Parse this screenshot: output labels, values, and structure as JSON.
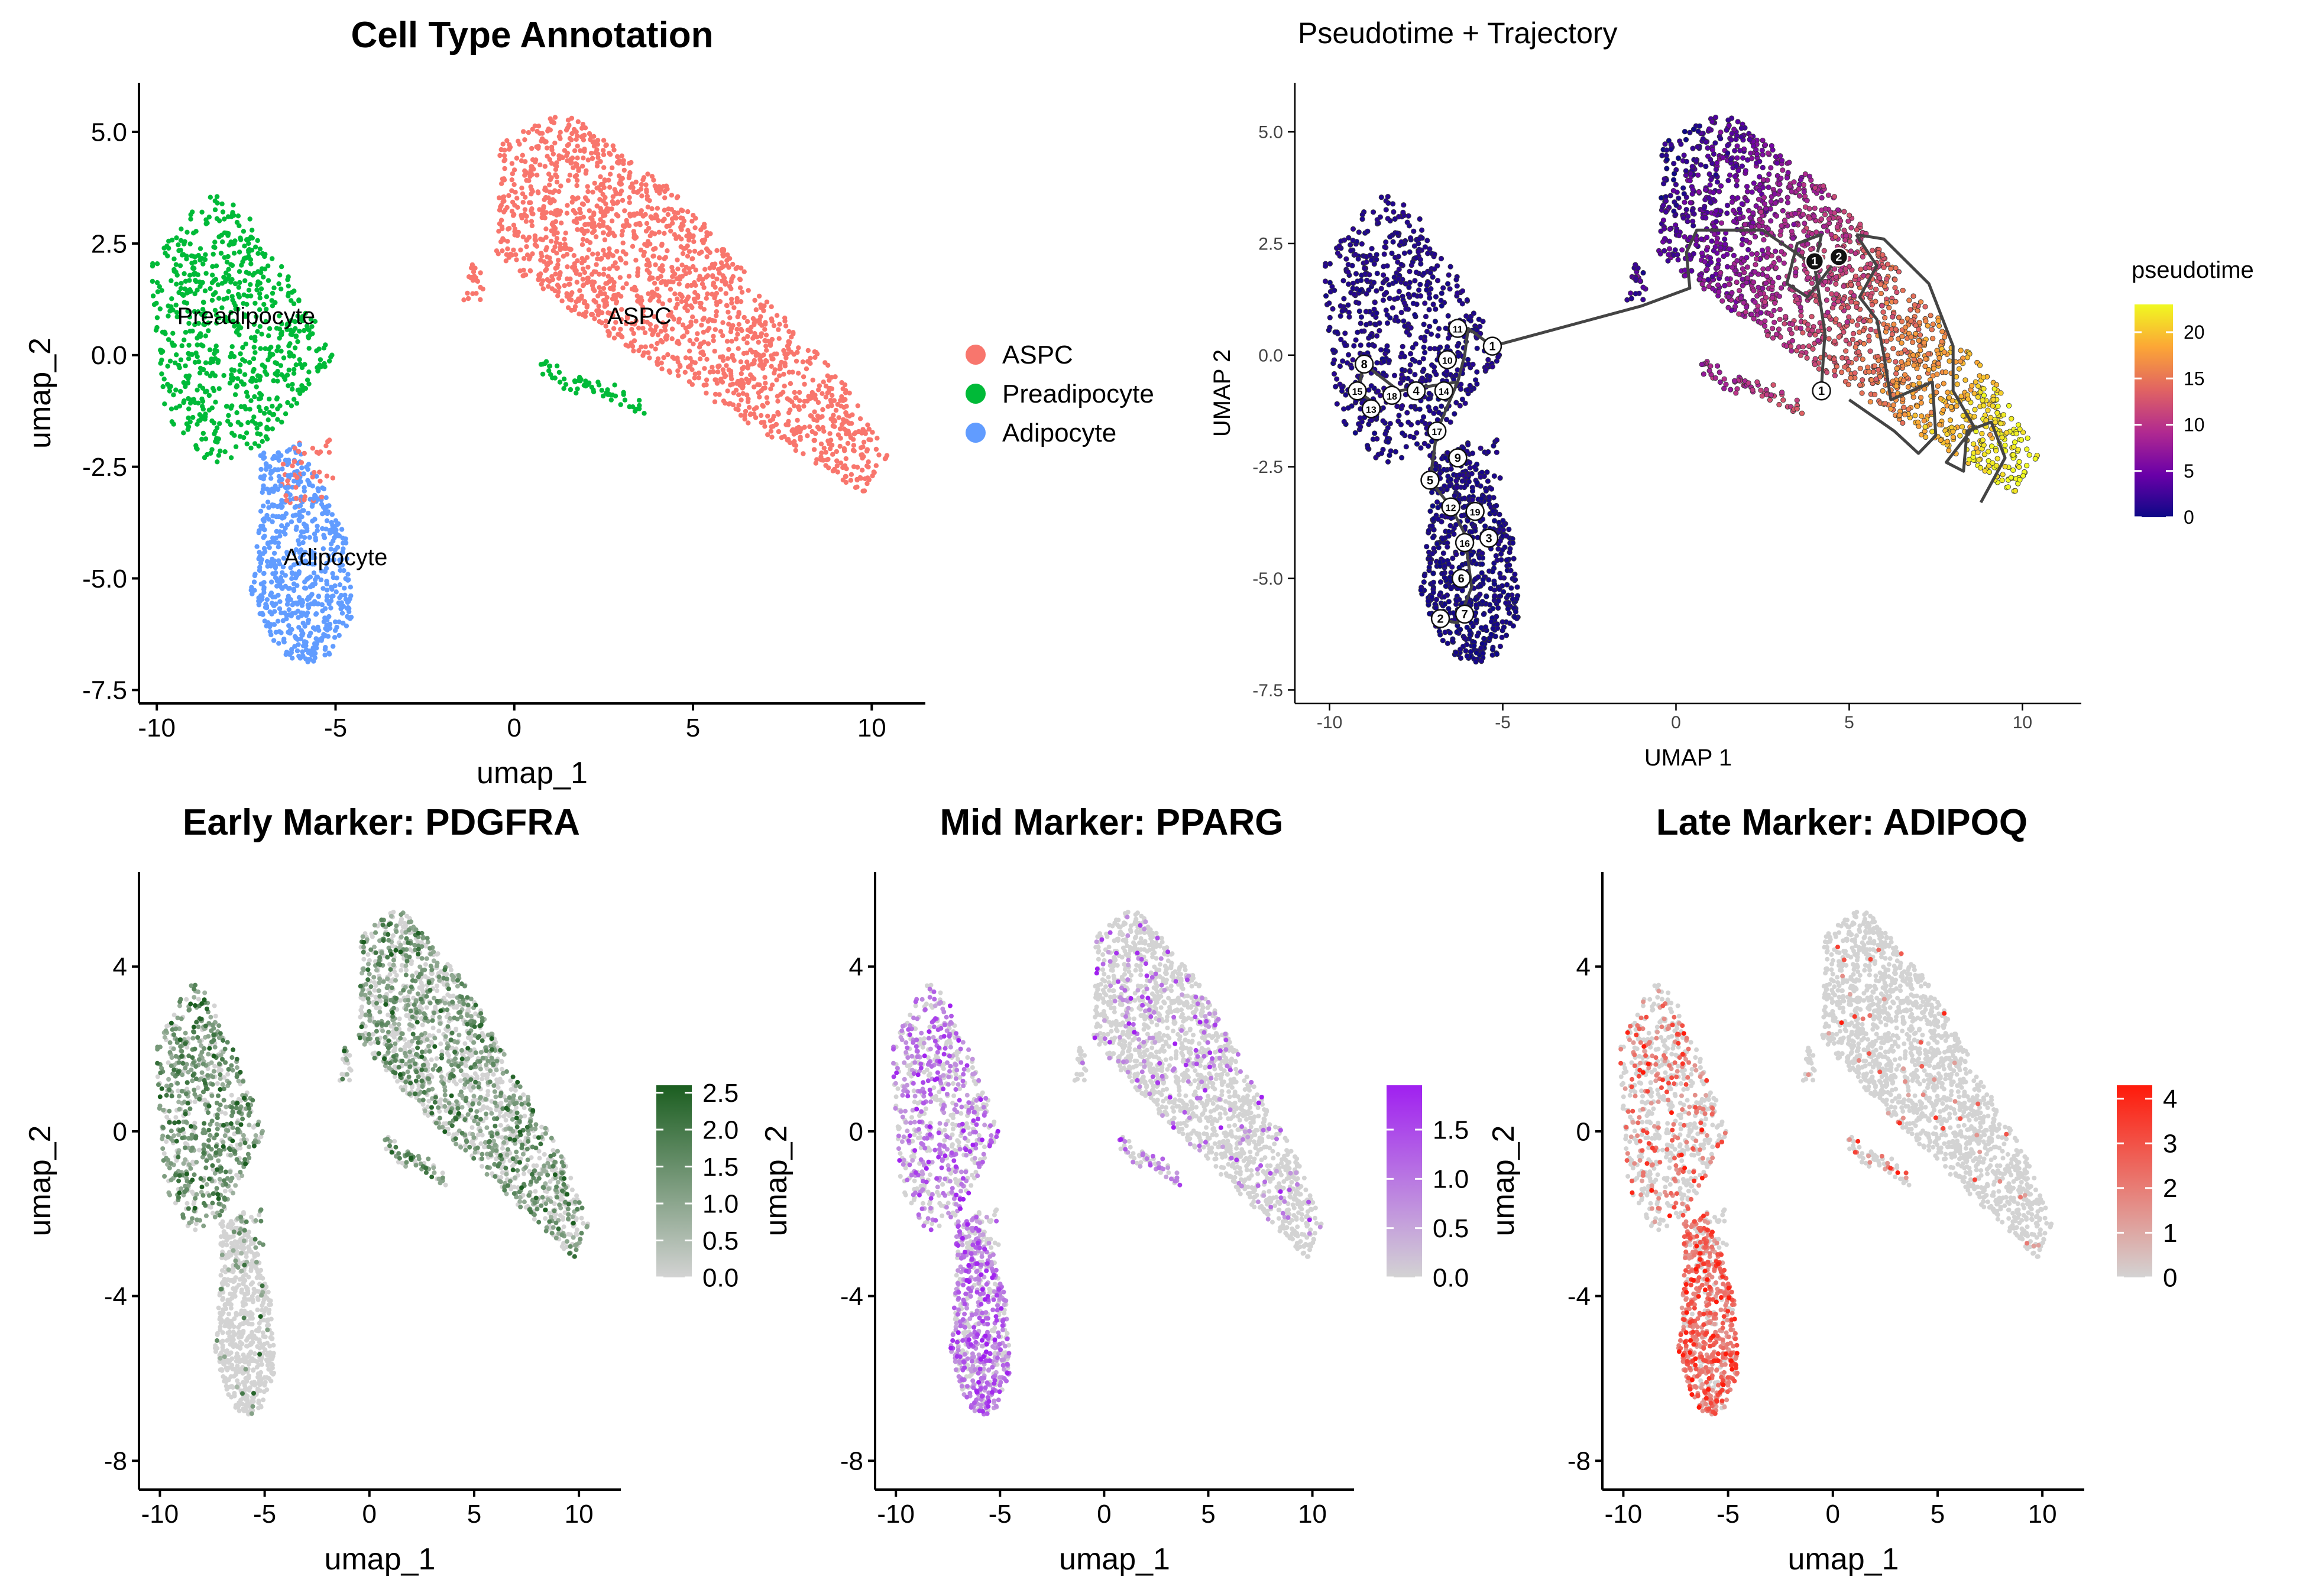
{
  "colors": {
    "aspc": "#F8766D",
    "preadipocyte": "#00BA38",
    "adipocyte": "#619CFF",
    "grey": "#D3D3D3",
    "pdgfra_high": "#1B5E20",
    "pparg_high": "#A020F0",
    "adipoq_high": "#FF1A0A",
    "traj_line": "#444444",
    "pseudotime_scale": [
      "#0D0887",
      "#6A00A8",
      "#B12A90",
      "#E16462",
      "#FCA636",
      "#F0F921"
    ]
  },
  "chart_data": [
    {
      "id": "celltype",
      "type": "scatter",
      "title": "Cell Type Annotation",
      "xlabel": "umap_1",
      "ylabel": "umap_2",
      "xlim": [
        -10.5,
        11.5
      ],
      "ylim": [
        -7.8,
        6.1
      ],
      "xticks": [
        -10,
        -5,
        0,
        5,
        10
      ],
      "xticklabels": [
        "-10",
        "-5",
        "0",
        "5",
        "10"
      ],
      "yticks": [
        -7.5,
        -5,
        -2.5,
        0,
        2.5,
        5
      ],
      "yticklabels": [
        "-7.5",
        "-5.0",
        "-2.5",
        "0.0",
        "2.5",
        "5.0"
      ],
      "legend": {
        "position": "right",
        "entries": [
          "ASPC",
          "Preadipocyte",
          "Adipocyte"
        ]
      },
      "cluster_labels": [
        {
          "text": "Preadipocyte",
          "x": -7.5,
          "y": 0.7
        },
        {
          "text": "ASPC",
          "x": 3.5,
          "y": 0.7
        },
        {
          "text": "Adipocyte",
          "x": -5.0,
          "y": -4.7
        }
      ],
      "clusters": [
        {
          "name": "ASPC",
          "region": [
            [
              0.8,
              5.3
            ],
            [
              -0.4,
              4.8
            ],
            [
              -0.5,
              2.2
            ],
            [
              2.3,
              0.6
            ],
            [
              6.5,
              -1.5
            ],
            [
              9.8,
              -3.1
            ],
            [
              10.5,
              -2.3
            ],
            [
              9.3,
              -0.7
            ],
            [
              4.6,
              3.6
            ],
            [
              1.6,
              5.4
            ]
          ],
          "n": 1700
        },
        {
          "name": "Preadipocyte",
          "region": [
            [
              -8.6,
              3.7
            ],
            [
              -10.2,
              2.0
            ],
            [
              -9.8,
              -1.3
            ],
            [
              -8.5,
              -2.5
            ],
            [
              -7.0,
              -2.0
            ],
            [
              -6.2,
              -1.2
            ],
            [
              -5.0,
              0.0
            ],
            [
              -6.5,
              2.0
            ],
            [
              -7.5,
              3.2
            ]
          ],
          "n": 700
        },
        {
          "name": "Adipocyte",
          "region": [
            [
              -7.1,
              -2.2
            ],
            [
              -7.1,
              -3.6
            ],
            [
              -7.4,
              -5.4
            ],
            [
              -6.4,
              -6.9
            ],
            [
              -5.3,
              -6.9
            ],
            [
              -4.5,
              -5.8
            ],
            [
              -4.7,
              -4.1
            ],
            [
              -5.3,
              -3.0
            ],
            [
              -6.0,
              -2.0
            ]
          ],
          "n": 650
        }
      ]
    },
    {
      "id": "pseudotime",
      "type": "scatter",
      "title": "Pseudotime + Trajectory",
      "xlabel": "UMAP 1",
      "ylabel": "UMAP 2",
      "xlim": [
        -11.0,
        11.7
      ],
      "ylim": [
        -7.8,
        6.1
      ],
      "xticks": [
        -10,
        -5,
        0,
        5,
        10
      ],
      "xticklabels": [
        "-10",
        "-5",
        "0",
        "5",
        "10"
      ],
      "yticks": [
        -7.5,
        -5,
        -2.5,
        0,
        2.5,
        5
      ],
      "yticklabels": [
        "-7.5",
        "-5.0",
        "-2.5",
        "0.0",
        "2.5",
        "5.0"
      ],
      "colorbar": {
        "title": "pseudotime",
        "range": [
          0,
          23
        ],
        "ticks": [
          0,
          5,
          10,
          15,
          20
        ],
        "ticklabels": [
          "0",
          "5",
          "10",
          "15",
          "20"
        ]
      },
      "trajectory": [
        [
          [
            -5.3,
            0.2
          ],
          [
            -1.0,
            1.1
          ],
          [
            0.4,
            1.5
          ],
          [
            0.3,
            2.3
          ],
          [
            0.6,
            2.8
          ],
          [
            2.5,
            2.8
          ],
          [
            4.0,
            2.0
          ],
          [
            4.3,
            0.5
          ],
          [
            4.2,
            -0.7
          ]
        ],
        [
          [
            4.0,
            2.0
          ],
          [
            4.2,
            2.7
          ],
          [
            3.5,
            2.5
          ],
          [
            3.2,
            1.6
          ],
          [
            3.8,
            1.3
          ],
          [
            4.5,
            2.0
          ]
        ],
        [
          [
            5.2,
            2.7
          ],
          [
            5.8,
            2.0
          ],
          [
            5.3,
            1.3
          ],
          [
            5.8,
            0.8
          ],
          [
            6.0,
            0.0
          ],
          [
            6.2,
            -1.0
          ],
          [
            7.4,
            -0.6
          ],
          [
            7.5,
            -1.8
          ],
          [
            7.0,
            -2.2
          ],
          [
            6.3,
            -1.7
          ],
          [
            5.0,
            -1.0
          ]
        ],
        [
          [
            5.2,
            2.7
          ],
          [
            6.0,
            2.6
          ],
          [
            7.3,
            1.6
          ],
          [
            8.0,
            0.2
          ],
          [
            8.0,
            -0.8
          ],
          [
            8.6,
            -1.6
          ],
          [
            7.8,
            -2.4
          ],
          [
            8.3,
            -2.6
          ],
          [
            8.4,
            -1.7
          ],
          [
            9.1,
            -1.5
          ],
          [
            9.5,
            -2.3
          ],
          [
            8.8,
            -3.3
          ]
        ],
        [
          [
            -5.3,
            0.2
          ],
          [
            -6.0,
            0.6
          ],
          [
            -6.1,
            0.0
          ],
          [
            -6.3,
            -0.6
          ],
          [
            -6.9,
            -1.7
          ],
          [
            -7.1,
            -2.8
          ],
          [
            -6.5,
            -3.4
          ],
          [
            -6.1,
            -4.0
          ],
          [
            -5.9,
            -5.2
          ],
          [
            -6.3,
            -6.0
          ],
          [
            -6.9,
            -5.9
          ]
        ],
        [
          [
            -6.3,
            -0.6
          ],
          [
            -8.0,
            -0.8
          ],
          [
            -9.0,
            -0.2
          ],
          [
            -9.2,
            -0.8
          ],
          [
            -8.5,
            -1.2
          ]
        ]
      ],
      "nodes": [
        {
          "label": "1",
          "x": -5.3,
          "y": 0.2,
          "style": "white"
        },
        {
          "label": "11",
          "x": -6.3,
          "y": 0.6,
          "style": "white"
        },
        {
          "label": "10",
          "x": -6.6,
          "y": -0.1,
          "style": "white"
        },
        {
          "label": "8",
          "x": -9.0,
          "y": -0.2,
          "style": "white"
        },
        {
          "label": "15",
          "x": -9.2,
          "y": -0.8,
          "style": "white"
        },
        {
          "label": "18",
          "x": -8.2,
          "y": -0.9,
          "style": "white"
        },
        {
          "label": "4",
          "x": -7.5,
          "y": -0.8,
          "style": "white"
        },
        {
          "label": "14",
          "x": -6.7,
          "y": -0.8,
          "style": "white"
        },
        {
          "label": "13",
          "x": -8.8,
          "y": -1.2,
          "style": "white"
        },
        {
          "label": "17",
          "x": -6.9,
          "y": -1.7,
          "style": "white"
        },
        {
          "label": "9",
          "x": -6.3,
          "y": -2.3,
          "style": "white"
        },
        {
          "label": "5",
          "x": -7.1,
          "y": -2.8,
          "style": "white"
        },
        {
          "label": "12",
          "x": -6.5,
          "y": -3.4,
          "style": "white"
        },
        {
          "label": "19",
          "x": -5.8,
          "y": -3.5,
          "style": "white"
        },
        {
          "label": "16",
          "x": -6.1,
          "y": -4.2,
          "style": "white"
        },
        {
          "label": "3",
          "x": -5.4,
          "y": -4.1,
          "style": "white"
        },
        {
          "label": "6",
          "x": -6.2,
          "y": -5.0,
          "style": "white"
        },
        {
          "label": "7",
          "x": -6.1,
          "y": -5.8,
          "style": "white"
        },
        {
          "label": "2",
          "x": -6.8,
          "y": -5.9,
          "style": "white"
        },
        {
          "label": "1",
          "x": 4.0,
          "y": 2.1,
          "style": "black"
        },
        {
          "label": "2",
          "x": 4.7,
          "y": 2.2,
          "style": "black"
        },
        {
          "label": "1",
          "x": 4.2,
          "y": -0.8,
          "style": "white"
        }
      ]
    },
    {
      "id": "pdgfra",
      "type": "scatter",
      "title": "Early Marker: PDGFRA",
      "xlabel": "umap_1",
      "ylabel": "umap_2",
      "xlim": [
        -11.0,
        12.0
      ],
      "ylim": [
        -8.7,
        6.3
      ],
      "xticks": [
        -10,
        -5,
        0,
        5,
        10
      ],
      "xticklabels": [
        "-10",
        "-5",
        "0",
        "5",
        "10"
      ],
      "yticks": [
        -8,
        -4,
        0,
        4
      ],
      "yticklabels": [
        "-8",
        "-4",
        "0",
        "4"
      ],
      "colorbar": {
        "range": [
          0,
          2.6
        ],
        "ticks": [
          0,
          0.5,
          1.0,
          1.5,
          2.0,
          2.5
        ],
        "ticklabels": [
          "0.0",
          "0.5",
          "1.0",
          "1.5",
          "2.0",
          "2.5"
        ]
      },
      "expression": {
        "aspc": 0.5,
        "preadipocyte": 0.75,
        "adipocyte": 0.04
      }
    },
    {
      "id": "pparg",
      "type": "scatter",
      "title": "Mid Marker: PPARG",
      "xlabel": "umap_1",
      "ylabel": "umap_2",
      "xlim": [
        -11.0,
        12.0
      ],
      "ylim": [
        -8.7,
        6.3
      ],
      "xticks": [
        -10,
        -5,
        0,
        5,
        10
      ],
      "xticklabels": [
        "-10",
        "-5",
        "0",
        "5",
        "10"
      ],
      "yticks": [
        -8,
        -4,
        0,
        4
      ],
      "yticklabels": [
        "-8",
        "-4",
        "0",
        "4"
      ],
      "colorbar": {
        "range": [
          0,
          1.95
        ],
        "ticks": [
          0,
          0.5,
          1.0,
          1.5
        ],
        "ticklabels": [
          "0.0",
          "0.5",
          "1.0",
          "1.5"
        ]
      },
      "expression": {
        "aspc": 0.12,
        "preadipocyte": 0.5,
        "adipocyte": 0.7
      }
    },
    {
      "id": "adipoq",
      "type": "scatter",
      "title": "Late Marker: ADIPOQ",
      "xlabel": "umap_1",
      "ylabel": "umap_2",
      "xlim": [
        -11.0,
        12.0
      ],
      "ylim": [
        -8.7,
        6.3
      ],
      "xticks": [
        -10,
        -5,
        0,
        5,
        10
      ],
      "xticklabels": [
        "-10",
        "-5",
        "0",
        "5",
        "10"
      ],
      "yticks": [
        -8,
        -4,
        0,
        4
      ],
      "yticklabels": [
        "-8",
        "-4",
        "0",
        "4"
      ],
      "colorbar": {
        "range": [
          0,
          4.3
        ],
        "ticks": [
          0,
          1,
          2,
          3,
          4
        ],
        "ticklabels": [
          "0",
          "1",
          "2",
          "3",
          "4"
        ]
      },
      "expression": {
        "aspc": 0.03,
        "preadipocyte": 0.3,
        "adipocyte": 0.85
      }
    }
  ]
}
